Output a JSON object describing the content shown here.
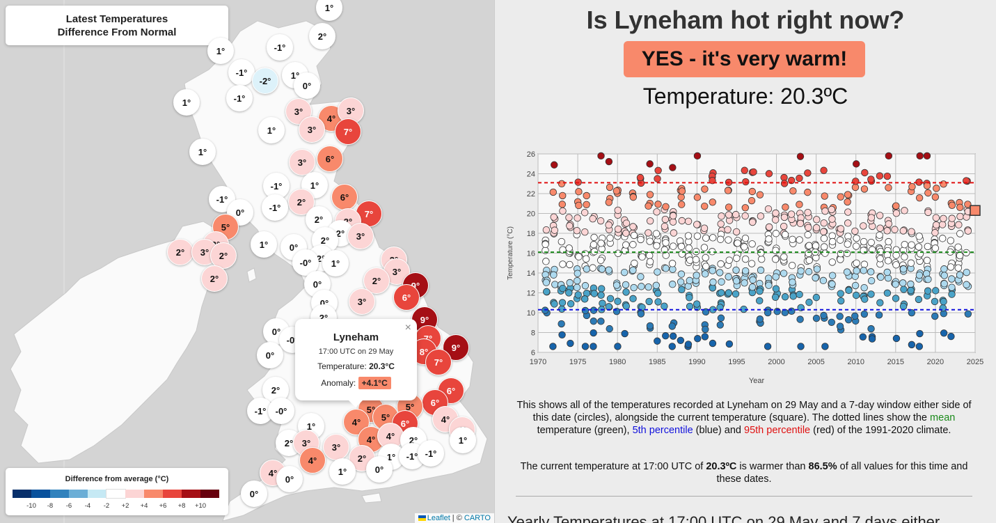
{
  "map": {
    "title_line1": "Latest Temperatures",
    "title_line2": "Difference From Normal",
    "markers": [
      {
        "label": "1°",
        "x": 473,
        "y": 11,
        "c": "#ffffff"
      },
      {
        "label": "2°",
        "x": 463,
        "y": 52,
        "c": "#ffffff"
      },
      {
        "label": "1°",
        "x": 317,
        "y": 73,
        "c": "#ffffff"
      },
      {
        "label": "-1°",
        "x": 402,
        "y": 68,
        "c": "#ffffff"
      },
      {
        "label": "-1°",
        "x": 347,
        "y": 104,
        "c": "#ffffff"
      },
      {
        "label": "-2°",
        "x": 381,
        "y": 116,
        "c": "#ddf2fa"
      },
      {
        "label": "1°",
        "x": 424,
        "y": 108,
        "c": "#ffffff"
      },
      {
        "label": "0°",
        "x": 441,
        "y": 123,
        "c": "#ffffff"
      },
      {
        "label": "-1°",
        "x": 344,
        "y": 141,
        "c": "#ffffff"
      },
      {
        "label": "1°",
        "x": 268,
        "y": 147,
        "c": "#ffffff"
      },
      {
        "label": "3°",
        "x": 429,
        "y": 160,
        "c": "#fcd5d5"
      },
      {
        "label": "4°",
        "x": 476,
        "y": 170,
        "c": "#f8896b"
      },
      {
        "label": "3°",
        "x": 504,
        "y": 159,
        "c": "#fcd5d5"
      },
      {
        "label": "3°",
        "x": 448,
        "y": 186,
        "c": "#fcd5d5"
      },
      {
        "label": "7°",
        "x": 500,
        "y": 189,
        "c": "#e8453c",
        "dark": true
      },
      {
        "label": "1°",
        "x": 390,
        "y": 187,
        "c": "#ffffff"
      },
      {
        "label": "1°",
        "x": 291,
        "y": 218,
        "c": "#ffffff"
      },
      {
        "label": "3°",
        "x": 434,
        "y": 233,
        "c": "#fcd5d5"
      },
      {
        "label": "6°",
        "x": 474,
        "y": 228,
        "c": "#f8896b"
      },
      {
        "label": "-1°",
        "x": 397,
        "y": 267,
        "c": "#ffffff"
      },
      {
        "label": "1°",
        "x": 452,
        "y": 266,
        "c": "#ffffff"
      },
      {
        "label": "-1°",
        "x": 319,
        "y": 286,
        "c": "#ffffff"
      },
      {
        "label": "2°",
        "x": 433,
        "y": 290,
        "c": "#fcd5d5"
      },
      {
        "label": "6°",
        "x": 495,
        "y": 283,
        "c": "#f8896b"
      },
      {
        "label": "-1°",
        "x": 395,
        "y": 298,
        "c": "#ffffff"
      },
      {
        "label": "0°",
        "x": 345,
        "y": 305,
        "c": "#ffffff"
      },
      {
        "label": "7°",
        "x": 530,
        "y": 307,
        "c": "#e8453c",
        "dark": true
      },
      {
        "label": "2°",
        "x": 458,
        "y": 315,
        "c": "#ffffff"
      },
      {
        "label": "2°",
        "x": 500,
        "y": 318,
        "c": "#fcd5d5"
      },
      {
        "label": "5°",
        "x": 324,
        "y": 326,
        "c": "#f8896b"
      },
      {
        "label": "2°",
        "x": 489,
        "y": 335,
        "c": "#ffffff"
      },
      {
        "label": "3°",
        "x": 518,
        "y": 339,
        "c": "#fcd5d5"
      },
      {
        "label": "3°",
        "x": 310,
        "y": 351,
        "c": "#fcd5d5"
      },
      {
        "label": "2°",
        "x": 467,
        "y": 345,
        "c": "#ffffff"
      },
      {
        "label": "1°",
        "x": 379,
        "y": 351,
        "c": "#ffffff"
      },
      {
        "label": "0°",
        "x": 422,
        "y": 355,
        "c": "#ffffff"
      },
      {
        "label": "2°",
        "x": 259,
        "y": 362,
        "c": "#fcd5d5"
      },
      {
        "label": "3°",
        "x": 294,
        "y": 362,
        "c": "#fcd5d5"
      },
      {
        "label": "2°",
        "x": 321,
        "y": 367,
        "c": "#fcd5d5"
      },
      {
        "label": "2°",
        "x": 461,
        "y": 371,
        "c": "#ffffff"
      },
      {
        "label": "-0°",
        "x": 439,
        "y": 377,
        "c": "#ffffff"
      },
      {
        "label": "1°",
        "x": 482,
        "y": 378,
        "c": "#ffffff"
      },
      {
        "label": "2°",
        "x": 566,
        "y": 373,
        "c": "#fcd5d5"
      },
      {
        "label": "3°",
        "x": 570,
        "y": 390,
        "c": "#fcd5d5"
      },
      {
        "label": "2°",
        "x": 308,
        "y": 400,
        "c": "#fcd5d5"
      },
      {
        "label": "2°",
        "x": 541,
        "y": 403,
        "c": "#fcd5d5"
      },
      {
        "label": "0°",
        "x": 456,
        "y": 408,
        "c": "#ffffff"
      },
      {
        "label": "9°",
        "x": 597,
        "y": 410,
        "c": "#a50f15",
        "dark": true
      },
      {
        "label": "6°",
        "x": 584,
        "y": 427,
        "c": "#e8453c",
        "dark": true
      },
      {
        "label": "0°",
        "x": 466,
        "y": 435,
        "c": "#ffffff"
      },
      {
        "label": "3°",
        "x": 520,
        "y": 433,
        "c": "#fcd5d5"
      },
      {
        "label": "2°",
        "x": 465,
        "y": 456,
        "c": "#ffffff"
      },
      {
        "label": "9°",
        "x": 610,
        "y": 459,
        "c": "#a50f15",
        "dark": true
      },
      {
        "label": "0°",
        "x": 397,
        "y": 476,
        "c": "#ffffff"
      },
      {
        "label": "-0°",
        "x": 420,
        "y": 488,
        "c": "#ffffff"
      },
      {
        "label": "7°",
        "x": 615,
        "y": 486,
        "c": "#e8453c",
        "dark": true
      },
      {
        "label": "9°",
        "x": 655,
        "y": 499,
        "c": "#a50f15",
        "dark": true
      },
      {
        "label": "8°",
        "x": 609,
        "y": 505,
        "c": "#e8453c",
        "dark": true
      },
      {
        "label": "0°",
        "x": 388,
        "y": 510,
        "c": "#ffffff"
      },
      {
        "label": "7°",
        "x": 630,
        "y": 520,
        "c": "#e8453c",
        "dark": true
      },
      {
        "label": "2°",
        "x": 396,
        "y": 560,
        "c": "#ffffff"
      },
      {
        "label": "6°",
        "x": 648,
        "y": 561,
        "c": "#e8453c",
        "dark": true
      },
      {
        "label": "6°",
        "x": 625,
        "y": 578,
        "c": "#e8453c",
        "dark": true
      },
      {
        "label": "5°",
        "x": 533,
        "y": 588,
        "c": "#f8896b"
      },
      {
        "label": "5°",
        "x": 589,
        "y": 584,
        "c": "#f8896b"
      },
      {
        "label": "-1°",
        "x": 374,
        "y": 590,
        "c": "#ffffff"
      },
      {
        "label": "-0°",
        "x": 404,
        "y": 590,
        "c": "#ffffff"
      },
      {
        "label": "5°",
        "x": 554,
        "y": 599,
        "c": "#f8896b"
      },
      {
        "label": "4°",
        "x": 512,
        "y": 606,
        "c": "#f8896b"
      },
      {
        "label": "6°",
        "x": 582,
        "y": 608,
        "c": "#e8453c",
        "dark": true
      },
      {
        "label": "4°",
        "x": 640,
        "y": 602,
        "c": "#fcd5d5"
      },
      {
        "label": "4°",
        "x": 664,
        "y": 617,
        "c": "#fcd5d5"
      },
      {
        "label": "1°",
        "x": 447,
        "y": 612,
        "c": "#ffffff"
      },
      {
        "label": "4°",
        "x": 533,
        "y": 631,
        "c": "#f8896b"
      },
      {
        "label": "4°",
        "x": 561,
        "y": 626,
        "c": "#fcd5d5"
      },
      {
        "label": "2°",
        "x": 415,
        "y": 636,
        "c": "#ffffff"
      },
      {
        "label": "3°",
        "x": 440,
        "y": 636,
        "c": "#fcd5d5"
      },
      {
        "label": "3°",
        "x": 483,
        "y": 642,
        "c": "#fcd5d5"
      },
      {
        "label": "2°",
        "x": 594,
        "y": 632,
        "c": "#ffffff"
      },
      {
        "label": "1°",
        "x": 665,
        "y": 632,
        "c": "#ffffff"
      },
      {
        "label": "2°",
        "x": 520,
        "y": 658,
        "c": "#fcd5d5"
      },
      {
        "label": "1°",
        "x": 562,
        "y": 656,
        "c": "#ffffff"
      },
      {
        "label": "-1°",
        "x": 592,
        "y": 655,
        "c": "#ffffff"
      },
      {
        "label": "-1°",
        "x": 619,
        "y": 651,
        "c": "#ffffff"
      },
      {
        "label": "4°",
        "x": 449,
        "y": 661,
        "c": "#f8896b"
      },
      {
        "label": "1°",
        "x": 492,
        "y": 677,
        "c": "#ffffff"
      },
      {
        "label": "0°",
        "x": 545,
        "y": 674,
        "c": "#ffffff"
      },
      {
        "label": "4°",
        "x": 392,
        "y": 679,
        "c": "#fcd5d5"
      },
      {
        "label": "0°",
        "x": 416,
        "y": 688,
        "c": "#ffffff"
      },
      {
        "label": "0°",
        "x": 365,
        "y": 709,
        "c": "#ffffff"
      }
    ],
    "popup": {
      "close": "×",
      "name": "Lyneham",
      "time": "17:00 UTC on 29 May",
      "temp_label": "Temperature:",
      "temp_value": "20.3°C",
      "anom_label": "Anomaly:",
      "anom_value": "+4.1°C"
    },
    "legend": {
      "title": "Difference from average (°C)",
      "colors": [
        "#08306b",
        "#08519c",
        "#3182bd",
        "#6baed6",
        "#c6e9f4",
        "#ffffff",
        "#fcd5d5",
        "#f8896b",
        "#e8453c",
        "#a50f15",
        "#67000d"
      ],
      "ticks": [
        "-10",
        "-8",
        "-6",
        "-4",
        "-2",
        "+2",
        "+4",
        "+6",
        "+8",
        "+10"
      ]
    },
    "attribution": {
      "leaflet": "Leaflet",
      "sep": " | © ",
      "carto": "CARTO"
    }
  },
  "info": {
    "headline": "Is Lyneham hot right now?",
    "verdict": "YES - it's very warm!",
    "current_temp": "Temperature: 20.3ºC",
    "desc_1": "This shows all of the temperatures recorded at Lyneham on 29 May and a 7-day window either side of this date (circles), alongside the current temperature (square). The dotted lines show the",
    "desc_mean": "mean",
    "desc_2": "temperature (green),",
    "desc_p5": "5th percentile",
    "desc_3": "(blue) and",
    "desc_p95": "95th percentile",
    "desc_4": "(red) of the 1991-2020 climate.",
    "stat_1": "The current temperature at 17:00 UTC of",
    "stat_temp": "20.3ºC",
    "stat_2": "is warmer than",
    "stat_pct": "86.5%",
    "stat_3": "of all values for this time and these dates.",
    "cutoff": "Yearly Temperatures at 17:00 UTC on 29 May and 7 days either"
  },
  "chart_data": {
    "type": "scatter",
    "xlabel": "Year",
    "ylabel": "Temperature (°C)",
    "xlim": [
      1970,
      2025
    ],
    "ylim": [
      6,
      26
    ],
    "xticks": [
      1970,
      1975,
      1980,
      1985,
      1990,
      1995,
      2000,
      2005,
      2010,
      2015,
      2020,
      2025
    ],
    "yticks": [
      6,
      8,
      10,
      12,
      14,
      16,
      18,
      20,
      22,
      24,
      26
    ],
    "mean": 16.1,
    "p5": 10.3,
    "p95": 23.1,
    "current": {
      "x": 2025,
      "y": 20.3
    },
    "colors": {
      "mean": "#1a8a1a",
      "p5": "#1111dd",
      "p95": "#e01010"
    }
  }
}
